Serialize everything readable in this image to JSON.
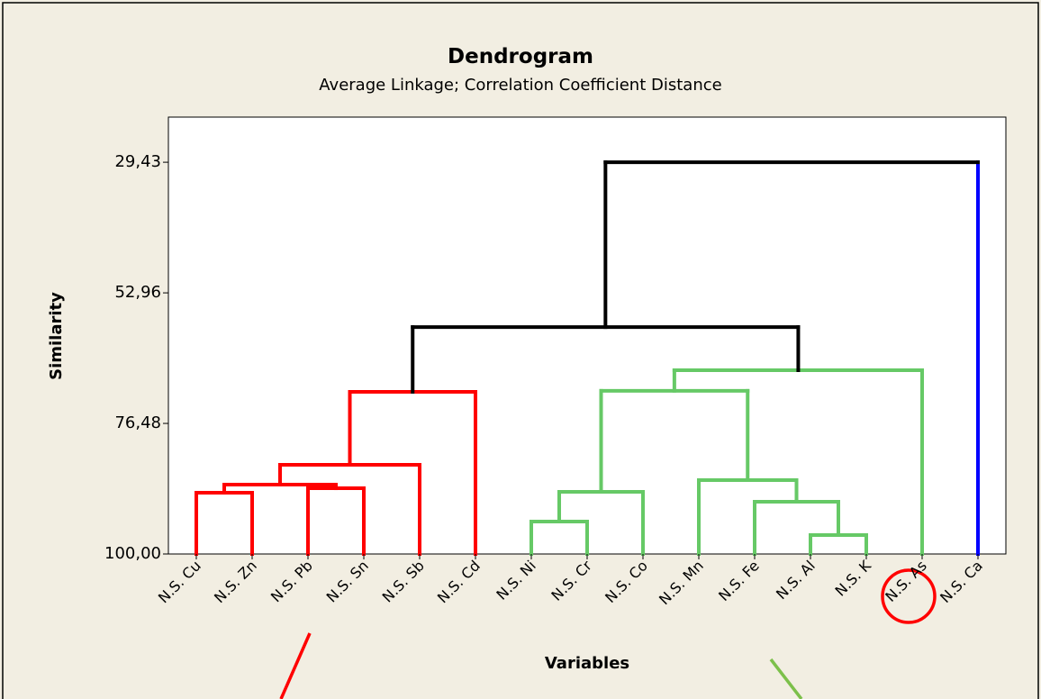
{
  "chart_data": {
    "type": "dendrogram",
    "title": "Dendrogram",
    "subtitle": "Average Linkage; Correlation Coefficient Distance",
    "x_label": "Variables",
    "y_label": "Similarity",
    "categories": [
      "N.S. Cu",
      "N.S. Zn",
      "N.S. Pb",
      "N.S. Sn",
      "N.S. Sb",
      "N.S. Cd",
      "N.S. Ni",
      "N.S. Cr",
      "N.S. Co",
      "N.S. Mn",
      "N.S. Fe",
      "N.S. Al",
      "N.S. K",
      "N.S. As",
      "N.S. Ca"
    ],
    "leaf_colors": [
      "#ff0000",
      "#ff0000",
      "#ff0000",
      "#ff0000",
      "#ff0000",
      "#ff0000",
      "#66c966",
      "#66c966",
      "#66c966",
      "#66c966",
      "#66c966",
      "#66c966",
      "#66c966",
      "#66c966",
      "#0000ff"
    ],
    "merges": [
      {
        "left": 0,
        "right": 1,
        "similarity": 88.97,
        "color": "#ff0000"
      },
      {
        "left": 2,
        "right": 3,
        "similarity": 88.16,
        "color": "#ff0000"
      },
      {
        "left": 15,
        "right": 16,
        "similarity": 87.51,
        "color": "#ff0000"
      },
      {
        "left": 17,
        "right": 4,
        "similarity": 83.94,
        "color": "#ff0000"
      },
      {
        "left": 18,
        "right": 5,
        "similarity": 70.8,
        "color": "#ff0000"
      },
      {
        "left": 6,
        "right": 7,
        "similarity": 94.16,
        "color": "#66c966"
      },
      {
        "left": 20,
        "right": 8,
        "similarity": 88.81,
        "color": "#66c966"
      },
      {
        "left": 11,
        "right": 12,
        "similarity": 96.59,
        "color": "#66c966"
      },
      {
        "left": 10,
        "right": 22,
        "similarity": 90.59,
        "color": "#66c966"
      },
      {
        "left": 9,
        "right": 23,
        "similarity": 86.7,
        "color": "#66c966"
      },
      {
        "left": 21,
        "right": 24,
        "similarity": 70.6,
        "color": "#66c966"
      },
      {
        "left": 25,
        "right": 13,
        "similarity": 66.9,
        "color": "#66c966"
      },
      {
        "left": 19,
        "right": 26,
        "similarity": 59.12,
        "color": "#000000"
      },
      {
        "left": 27,
        "right": 14,
        "similarity": 29.43,
        "color": "#000000"
      }
    ],
    "ylim": [
      100,
      21.3
    ],
    "yticks": [
      {
        "value": 29.43,
        "label": "29,43"
      },
      {
        "value": 52.96,
        "label": "52,96"
      },
      {
        "value": 76.48,
        "label": "76,48"
      },
      {
        "value": 100,
        "label": "100,00"
      }
    ]
  }
}
